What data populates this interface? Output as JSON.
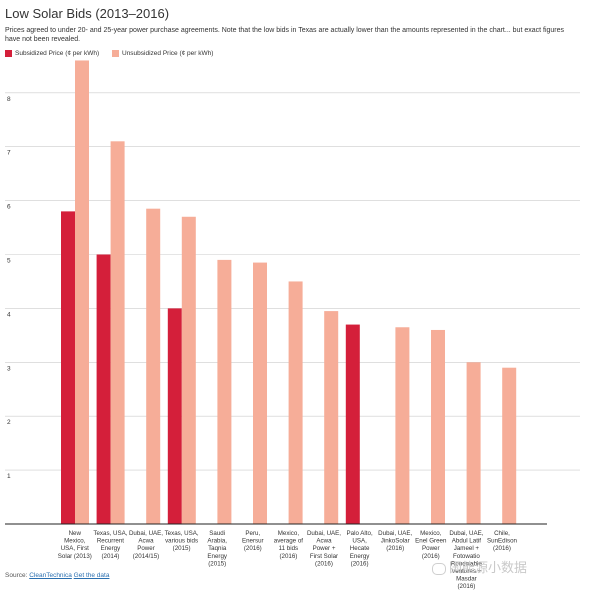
{
  "header": {
    "title": "Low Solar Bids (2013–2016)",
    "subtitle": "Prices agreed to under 20- and 25-year power purchase agreements. Note that the low bids in Texas are actually lower than the amounts represented in the chart... but exact figures have not been revealed."
  },
  "legend": [
    {
      "label": "Subsidized Price (¢ per kWh)",
      "color": "#d41f3a"
    },
    {
      "label": "Unsubsidized Price (¢ per kWh)",
      "color": "#f6ad98"
    }
  ],
  "footer": {
    "source_prefix": "Source:",
    "source_link": "CleanTechnica",
    "data_link": "Get the data"
  },
  "watermark": "国能源小数据",
  "colors": {
    "subsidized": "#d41f3a",
    "unsubsidized": "#f6ad98",
    "grid": "#cccccc",
    "axis": "#222222"
  },
  "chart_data": {
    "type": "bar",
    "title": "Low Solar Bids (2013–2016)",
    "ylim": [
      0,
      9
    ],
    "yticks": [
      1,
      2,
      3,
      4,
      5,
      6,
      7,
      8
    ],
    "grid": true,
    "legend_position": "top-left",
    "categories": [
      "New Mexico, USA, First Solar (2013)",
      "Texas, USA, Recurrent Energy (2014)",
      "Dubai, UAE, Acwa Power (2014/15)",
      "Texas, USA, various bids (2015)",
      "Saudi Arabia, Taqnia Energy (2015)",
      "Peru, Enersur (2016)",
      "Mexico, average of 11 bids (2016)",
      "Dubai, UAE, Acwa Power + First Solar (2016)",
      "Palo Alto, USA, Hecate Energy (2016)",
      "Dubai, UAE, JinkoSolar (2016)",
      "Mexico, Enel Green Power (2016)",
      "Dubai, UAE, Abdul Latif Jameel + Fotowatio Renewable Ventures + Masdar (2016)",
      "Chile, SunEdison (2016)"
    ],
    "category_lines": [
      [
        "New",
        "Mexico,",
        "USA, First",
        "Solar (2013)"
      ],
      [
        "Texas, USA,",
        "Recurrent",
        "Energy",
        "(2014)"
      ],
      [
        "Dubai, UAE,",
        "Acwa",
        "Power",
        "(2014/15)"
      ],
      [
        "Texas, USA,",
        "various bids",
        "(2015)"
      ],
      [
        "Saudi",
        "Arabia,",
        "Taqnia",
        "Energy",
        "(2015)"
      ],
      [
        "Peru,",
        "Enersur",
        "(2016)"
      ],
      [
        "Mexico,",
        "average of",
        "11 bids",
        "(2016)"
      ],
      [
        "Dubai, UAE,",
        "Acwa",
        "Power +",
        "First Solar",
        "(2016)"
      ],
      [
        "Palo Alto,",
        "USA,",
        "Hecate",
        "Energy",
        "(2016)"
      ],
      [
        "Dubai, UAE,",
        "JinkoSolar",
        "(2016)"
      ],
      [
        "Mexico,",
        "Enel Green",
        "Power",
        "(2016)"
      ],
      [
        "Dubai, UAE,",
        "Abdul Latif",
        "Jameel +",
        "Fotowatio",
        "Renewable",
        "Ventures +",
        "Masdar",
        "(2016)"
      ],
      [
        "Chile,",
        "SunEdison",
        "(2016)"
      ]
    ],
    "series": [
      {
        "name": "Subsidized Price (¢ per kWh)",
        "values": [
          5.8,
          5.0,
          null,
          4.0,
          null,
          null,
          null,
          null,
          3.7,
          null,
          null,
          null,
          null
        ]
      },
      {
        "name": "Unsubsidized Price (¢ per kWh)",
        "values": [
          8.6,
          7.1,
          5.85,
          5.7,
          4.9,
          4.85,
          4.5,
          3.95,
          null,
          3.65,
          3.6,
          3.0,
          2.9
        ]
      }
    ]
  }
}
